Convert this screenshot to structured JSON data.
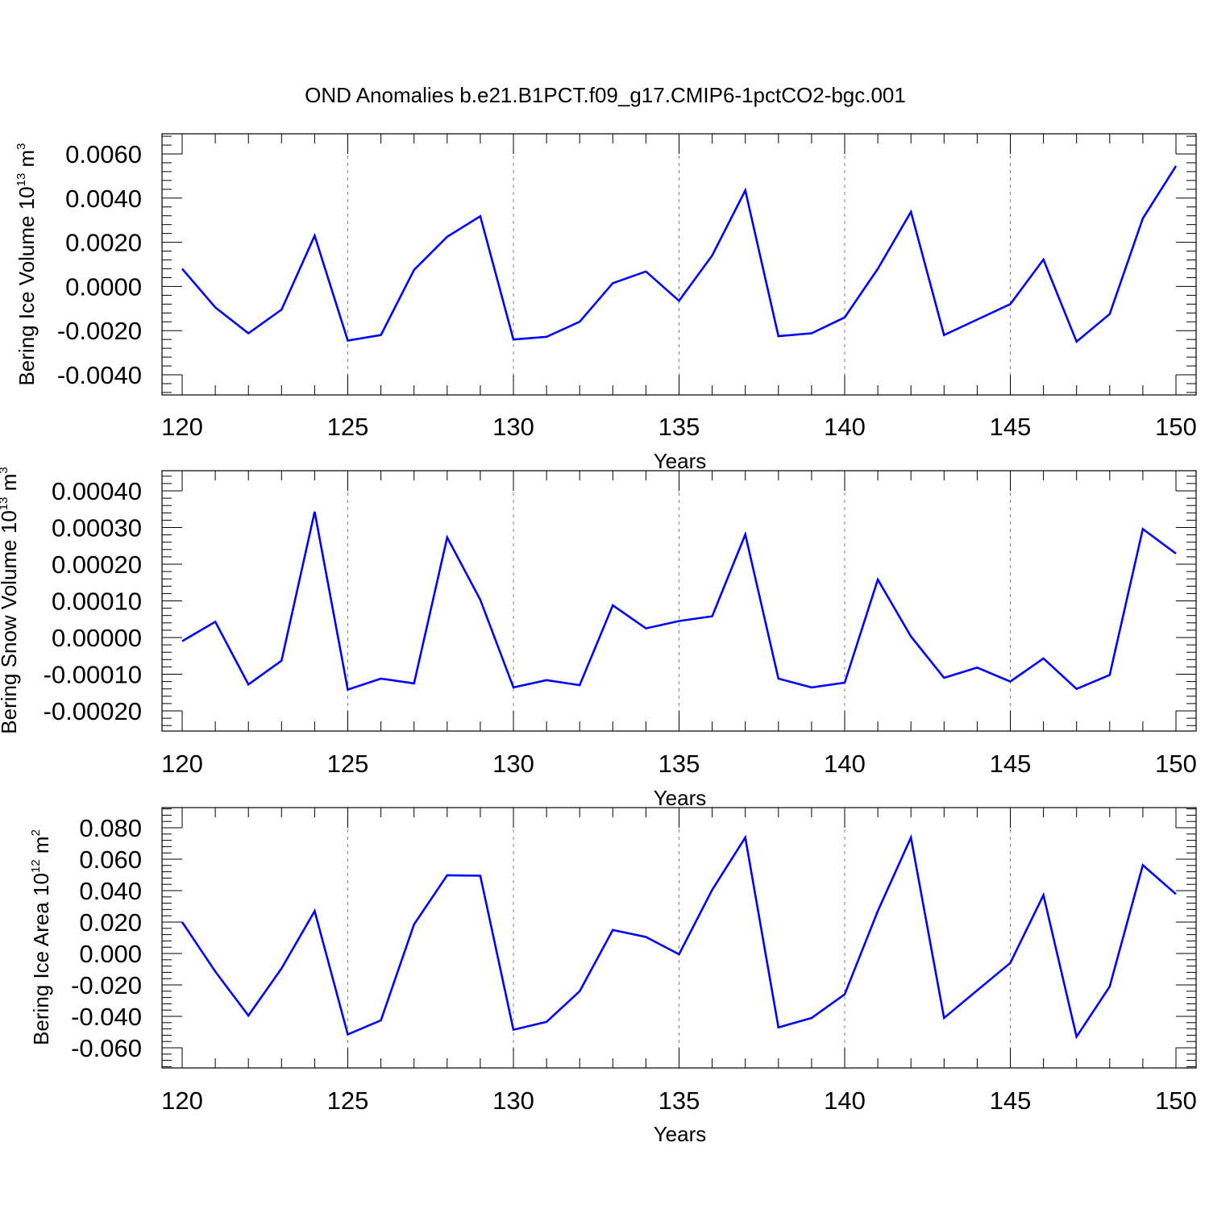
{
  "title": "OND Anomalies b.e21.B1PCT.f09_g17.CMIP6-1pctCO2-bgc.001",
  "colors": {
    "series": "#0000ff",
    "frame": "#000000",
    "grid": "#808080"
  },
  "chart_data": [
    {
      "type": "line",
      "title": "",
      "xlabel": "Years",
      "ylabel": {
        "text": "Bering Ice Volume 10",
        "sup": "13",
        "unit": " m",
        "unit_sup": "3"
      },
      "xlim": [
        120,
        150
      ],
      "ylim": [
        -0.004,
        0.006
      ],
      "x_ticks": [
        "120",
        "125",
        "130",
        "135",
        "140",
        "145",
        "150"
      ],
      "y_ticks": [
        "0.0060",
        "0.0040",
        "0.0020",
        "0.0000",
        "-0.0020",
        "-0.0040"
      ],
      "y_tick_values": [
        0.006,
        0.004,
        0.002,
        0.0,
        -0.002,
        -0.004
      ],
      "grid": "vertical dashed at major x ticks",
      "x": [
        120,
        121,
        122,
        123,
        124,
        125,
        126,
        127,
        128,
        129,
        130,
        131,
        132,
        133,
        134,
        135,
        136,
        137,
        138,
        139,
        140,
        141,
        142,
        143,
        144,
        145,
        146,
        147,
        148,
        149,
        150
      ],
      "series": [
        {
          "values": [
            0.0008,
            -0.00095,
            -0.00212,
            -0.00105,
            0.0023,
            -0.00245,
            -0.0022,
            0.00075,
            0.00225,
            0.00318,
            -0.0024,
            -0.00228,
            -0.0016,
            0.00015,
            0.00068,
            -0.00065,
            0.0014,
            0.00435,
            -0.00225,
            -0.00212,
            -0.0014,
            0.0008,
            0.00338,
            -0.0022,
            -0.0015,
            -0.0008,
            0.00122,
            -0.0025,
            -0.00125,
            0.00308,
            0.00545
          ]
        }
      ]
    },
    {
      "type": "line",
      "title": "",
      "xlabel": "Years",
      "ylabel": {
        "text": "Bering Snow Volume 10",
        "sup": "13",
        "unit": " m",
        "unit_sup": "3"
      },
      "xlim": [
        120,
        150
      ],
      "ylim": [
        -0.0002,
        0.0004
      ],
      "x_ticks": [
        "120",
        "125",
        "130",
        "135",
        "140",
        "145",
        "150"
      ],
      "y_ticks": [
        "0.00040",
        "0.00030",
        "0.00020",
        "0.00010",
        "0.00000",
        "-0.00010",
        "-0.00020"
      ],
      "y_tick_values": [
        0.0004,
        0.0003,
        0.0002,
        0.0001,
        0.0,
        -0.0001,
        -0.0002
      ],
      "grid": "vertical dashed at major x ticks",
      "x": [
        120,
        121,
        122,
        123,
        124,
        125,
        126,
        127,
        128,
        129,
        130,
        131,
        132,
        133,
        134,
        135,
        136,
        137,
        138,
        139,
        140,
        141,
        142,
        143,
        144,
        145,
        146,
        147,
        148,
        149,
        150
      ],
      "series": [
        {
          "values": [
            -1e-05,
            4.3e-05,
            -0.000128,
            -6.3e-05,
            0.000343,
            -0.000142,
            -0.000112,
            -0.000125,
            0.000273,
            0.000103,
            -0.000136,
            -0.000116,
            -0.00013,
            8.8e-05,
            2.5e-05,
            4.5e-05,
            5.8e-05,
            0.000281,
            -0.000112,
            -0.000136,
            -0.000123,
            0.000158,
            3e-06,
            -0.00011,
            -8.2e-05,
            -0.00012,
            -5.7e-05,
            -0.00014,
            -0.000102,
            0.000296,
            0.000229
          ]
        }
      ]
    },
    {
      "type": "line",
      "title": "",
      "xlabel": "Years",
      "ylabel": {
        "text": "Bering Ice Area 10",
        "sup": "12",
        "unit": " m",
        "unit_sup": "2"
      },
      "xlim": [
        120,
        150
      ],
      "ylim": [
        -0.06,
        0.08
      ],
      "x_ticks": [
        "120",
        "125",
        "130",
        "135",
        "140",
        "145",
        "150"
      ],
      "y_ticks": [
        "0.080",
        "0.060",
        "0.040",
        "0.020",
        "0.000",
        "-0.020",
        "-0.040",
        "-0.060"
      ],
      "y_tick_values": [
        0.08,
        0.06,
        0.04,
        0.02,
        0.0,
        -0.02,
        -0.04,
        -0.06
      ],
      "grid": "vertical dashed at major x ticks",
      "x": [
        120,
        121,
        122,
        123,
        124,
        125,
        126,
        127,
        128,
        129,
        130,
        131,
        132,
        133,
        134,
        135,
        136,
        137,
        138,
        139,
        140,
        141,
        142,
        143,
        144,
        145,
        146,
        147,
        148,
        149,
        150
      ],
      "series": [
        {
          "values": [
            0.02,
            -0.0115,
            -0.0395,
            -0.0095,
            0.027,
            -0.0515,
            -0.0425,
            0.0185,
            0.0498,
            0.0495,
            -0.0485,
            -0.0435,
            -0.024,
            0.015,
            0.0105,
            -0.0005,
            0.0405,
            0.0738,
            -0.047,
            -0.041,
            -0.026,
            0.027,
            0.0738,
            -0.041,
            -0.0235,
            -0.006,
            0.0372,
            -0.053,
            -0.021,
            0.0562,
            0.0378
          ]
        }
      ]
    }
  ]
}
